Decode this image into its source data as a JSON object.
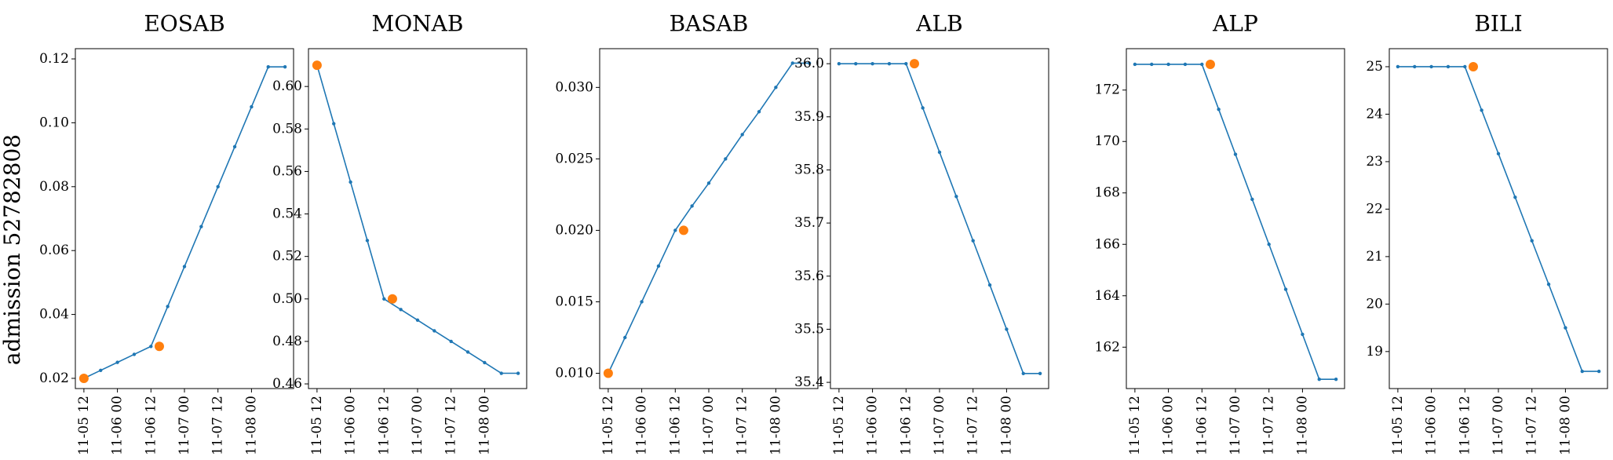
{
  "figure": {
    "ylabel": "admission 52782808"
  },
  "colors": {
    "line": "#1f77b4",
    "highlight": "#ff7f0e"
  },
  "chart_data": [
    {
      "type": "line",
      "title": "EOSAB",
      "xlabel": "",
      "ylabel": "",
      "x_ticks": [
        "11-05 12",
        "11-06 00",
        "11-06 12",
        "11-07 00",
        "11-07 12",
        "11-08 00"
      ],
      "y_ticks": [
        "0.02",
        "0.04",
        "0.06",
        "0.08",
        "0.10",
        "0.12"
      ],
      "ylim": [
        0.0168,
        0.1232
      ],
      "xlim": [
        -0.51,
        12.51
      ],
      "series": [
        {
          "x": [
            0,
            1,
            2,
            3,
            4,
            5,
            6,
            7,
            8,
            9,
            10,
            11,
            12
          ],
          "values": [
            0.02,
            0.0225,
            0.025,
            0.0275,
            0.03,
            0.0425,
            0.055,
            0.0675,
            0.08,
            0.0925,
            0.105,
            0.1175,
            0.1175
          ]
        }
      ],
      "highlight": {
        "x": [
          0,
          4.5
        ],
        "values": [
          0.02,
          0.03
        ]
      }
    },
    {
      "type": "line",
      "title": "MONAB",
      "xlabel": "",
      "ylabel": "",
      "x_ticks": [
        "11-05 12",
        "11-06 00",
        "11-06 12",
        "11-07 00",
        "11-07 12",
        "11-08 00"
      ],
      "y_ticks": [
        "0.46",
        "0.48",
        "0.50",
        "0.52",
        "0.54",
        "0.56",
        "0.58",
        "0.60"
      ],
      "ylim": [
        0.4578,
        0.6178
      ],
      "xlim": [
        -0.51,
        12.51
      ],
      "series": [
        {
          "x": [
            0,
            1,
            2,
            3,
            4,
            5,
            6,
            7,
            8,
            9,
            10,
            11,
            12
          ],
          "values": [
            0.61,
            0.5825,
            0.555,
            0.5275,
            0.5,
            0.495,
            0.49,
            0.485,
            0.48,
            0.475,
            0.47,
            0.465,
            0.465
          ]
        }
      ],
      "highlight": {
        "x": [
          0,
          4.5
        ],
        "values": [
          0.61,
          0.5
        ]
      }
    },
    {
      "type": "line",
      "title": "BASAB",
      "xlabel": "",
      "ylabel": "",
      "x_ticks": [
        "11-05 12",
        "11-06 00",
        "11-06 12",
        "11-07 00",
        "11-07 12",
        "11-08 00"
      ],
      "y_ticks": [
        "0.010",
        "0.015",
        "0.020",
        "0.025",
        "0.030"
      ],
      "ylim": [
        0.00893,
        0.03271
      ],
      "xlim": [
        -0.51,
        12.51
      ],
      "series": [
        {
          "x": [
            0,
            1,
            2,
            3,
            4,
            5,
            6,
            7,
            8,
            9,
            10,
            11,
            12
          ],
          "values": [
            0.01,
            0.0125,
            0.015,
            0.0175,
            0.02,
            0.0217,
            0.0233,
            0.025,
            0.0267,
            0.0283,
            0.03,
            0.0317,
            0.0317
          ]
        }
      ],
      "highlight": {
        "x": [
          0,
          4.5
        ],
        "values": [
          0.01,
          0.02
        ]
      }
    },
    {
      "type": "line",
      "title": "ALB",
      "xlabel": "",
      "ylabel": "",
      "x_ticks": [
        "11-05 12",
        "11-06 00",
        "11-06 12",
        "11-07 00",
        "11-07 12",
        "11-08 00"
      ],
      "y_ticks": [
        "35.4",
        "35.5",
        "35.6",
        "35.7",
        "35.8",
        "35.9",
        "36.0"
      ],
      "ylim": [
        35.3883,
        36.0283
      ],
      "xlim": [
        -0.51,
        12.51
      ],
      "series": [
        {
          "x": [
            0,
            1,
            2,
            3,
            4,
            5,
            6,
            7,
            8,
            9,
            10,
            11,
            12
          ],
          "values": [
            36.0,
            36.0,
            36.0,
            36.0,
            36.0,
            35.9167,
            35.8333,
            35.75,
            35.6667,
            35.5833,
            35.5,
            35.4167,
            35.4167
          ]
        }
      ],
      "highlight": {
        "x": [
          4.5
        ],
        "values": [
          36.0
        ]
      }
    },
    {
      "type": "line",
      "title": "ALP",
      "xlabel": "",
      "ylabel": "",
      "x_ticks": [
        "11-05 12",
        "11-06 00",
        "11-06 12",
        "11-07 00",
        "11-07 12",
        "11-08 00"
      ],
      "y_ticks": [
        "162",
        "164",
        "166",
        "168",
        "170",
        "172"
      ],
      "ylim": [
        160.39,
        173.61
      ],
      "xlim": [
        -0.51,
        12.51
      ],
      "series": [
        {
          "x": [
            0,
            1,
            2,
            3,
            4,
            5,
            6,
            7,
            8,
            9,
            10,
            11,
            12
          ],
          "values": [
            173,
            173,
            173,
            173,
            173,
            171.25,
            169.5,
            167.75,
            166,
            164.25,
            162.5,
            160.75,
            160.75
          ]
        }
      ],
      "highlight": {
        "x": [
          4.5
        ],
        "values": [
          173
        ]
      }
    },
    {
      "type": "line",
      "title": "BILI",
      "xlabel": "",
      "ylabel": "",
      "x_ticks": [
        "11-05 12",
        "11-06 00",
        "11-06 12",
        "11-07 00",
        "11-07 12",
        "11-08 00"
      ],
      "y_ticks": [
        "19",
        "20",
        "21",
        "22",
        "23",
        "24",
        "25"
      ],
      "ylim": [
        18.22,
        25.38
      ],
      "xlim": [
        -0.51,
        12.51
      ],
      "series": [
        {
          "x": [
            0,
            1,
            2,
            3,
            4,
            5,
            6,
            7,
            8,
            9,
            10,
            11,
            12
          ],
          "values": [
            25,
            25,
            25,
            25,
            25,
            24.083,
            23.167,
            22.25,
            21.333,
            20.417,
            19.5,
            18.583,
            18.583
          ]
        }
      ],
      "highlight": {
        "x": [
          4.5
        ],
        "values": [
          25
        ]
      }
    }
  ]
}
